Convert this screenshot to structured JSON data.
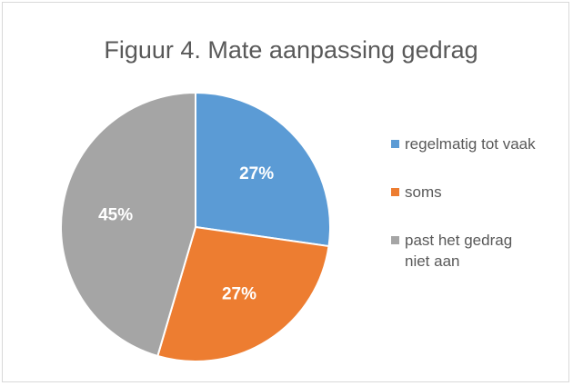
{
  "chart_data": {
    "type": "pie",
    "title": "Figuur 4.  Mate aanpassing gedrag",
    "categories": [
      "regelmatig tot vaak",
      "soms",
      "past het gedrag niet aan"
    ],
    "values": [
      27,
      27,
      45
    ],
    "value_labels": [
      "27%",
      "27%",
      "45%"
    ],
    "colors": [
      "#5b9bd5",
      "#ed7d31",
      "#a5a5a5"
    ],
    "legend": "right"
  }
}
